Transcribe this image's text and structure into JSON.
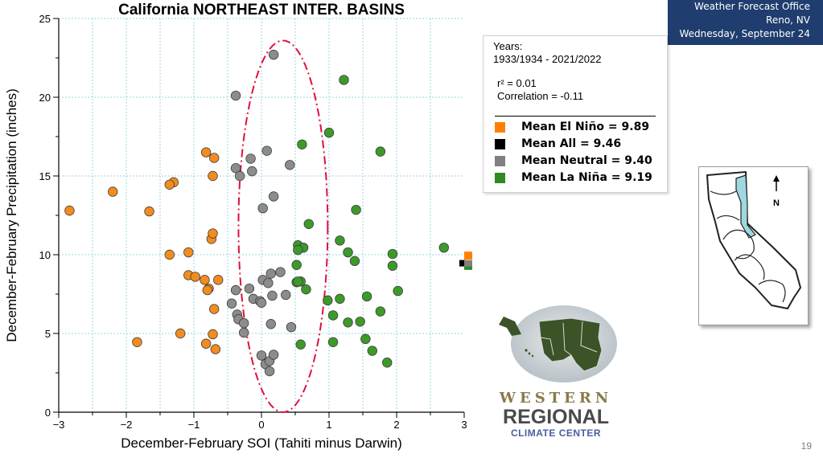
{
  "header": {
    "office": "Weather Forecast Office",
    "city": "Reno, NV",
    "date": "Wednesday, September 24"
  },
  "legend": {
    "years_label": "Years:",
    "years_range": "1933/1934 - 2021/2022",
    "r2": "r² = 0.01",
    "correlation": "Correlation = -0.11",
    "entries": [
      {
        "label": "Mean El Niño = 9.89",
        "color": "#ff8000"
      },
      {
        "label": "Mean All = 9.46",
        "color": "#000000"
      },
      {
        "label": "Mean Neutral = 9.40",
        "color": "#808080"
      },
      {
        "label": "Mean La Niña = 9.19",
        "color": "#2e8b22"
      }
    ]
  },
  "logo": {
    "line1": "WESTERN",
    "line2": "REGIONAL",
    "line3": "CLIMATE CENTER"
  },
  "map": {
    "north_label": "N"
  },
  "page_number": "19",
  "chart_data": {
    "type": "scatter",
    "title": "California NORTHEAST INTER. BASINS",
    "xlabel": "December-February SOI (Tahiti minus Darwin)",
    "ylabel": "December-February Precipitation (inches)",
    "xlim": [
      -3,
      3
    ],
    "ylim": [
      0,
      25
    ],
    "xticks": [
      -3,
      -2,
      -1,
      0,
      1,
      2,
      3
    ],
    "xtick_labels": [
      "−3",
      "−2",
      "−1",
      "0",
      "1",
      "2",
      "3"
    ],
    "yticks": [
      0,
      5,
      10,
      15,
      20,
      25
    ],
    "ytick_labels": [
      "0",
      "5",
      "10",
      "15",
      "20",
      "25"
    ],
    "grid": true,
    "colors": {
      "el_nino": "#f28c1e",
      "neutral": "#8c8c8c",
      "la_nina": "#3d9a2a",
      "ellipse": "#e0103a",
      "grid": "#9ad4e6"
    },
    "ellipse": {
      "center": [
        0.32,
        11.8
      ],
      "x_radius": 0.66,
      "y_radius": 11.8
    },
    "series": [
      {
        "name": "El Niño",
        "points": [
          [
            -2.84,
            12.8
          ],
          [
            -2.2,
            14.0
          ],
          [
            -1.66,
            12.75
          ],
          [
            -1.84,
            4.45
          ],
          [
            -1.3,
            14.6
          ],
          [
            -1.36,
            14.45
          ],
          [
            -1.36,
            10.0
          ],
          [
            -1.08,
            10.15
          ],
          [
            -1.2,
            5.0
          ],
          [
            -1.08,
            8.7
          ],
          [
            -0.98,
            8.6
          ],
          [
            -0.84,
            8.4
          ],
          [
            -0.82,
            16.5
          ],
          [
            -0.78,
            7.85
          ],
          [
            -0.8,
            7.75
          ],
          [
            -0.72,
            15.0
          ],
          [
            -0.7,
            16.15
          ],
          [
            -0.74,
            11.0
          ],
          [
            -0.72,
            11.35
          ],
          [
            -0.64,
            8.4
          ],
          [
            -0.7,
            6.55
          ],
          [
            -0.72,
            4.95
          ],
          [
            -0.82,
            4.35
          ],
          [
            -0.68,
            4.0
          ]
        ]
      },
      {
        "name": "Neutral",
        "points": [
          [
            -0.38,
            20.1
          ],
          [
            -0.38,
            15.5
          ],
          [
            -0.32,
            15.0
          ],
          [
            -0.16,
            16.1
          ],
          [
            -0.14,
            15.3
          ],
          [
            0.08,
            16.6
          ],
          [
            0.42,
            15.7
          ],
          [
            0.18,
            13.7
          ],
          [
            0.02,
            12.95
          ],
          [
            0.18,
            22.7
          ],
          [
            0.14,
            8.8
          ],
          [
            0.28,
            8.9
          ],
          [
            0.02,
            8.4
          ],
          [
            -0.38,
            7.75
          ],
          [
            -0.18,
            7.85
          ],
          [
            -0.12,
            7.2
          ],
          [
            -0.02,
            7.05
          ],
          [
            0.0,
            6.95
          ],
          [
            0.1,
            8.2
          ],
          [
            0.16,
            7.4
          ],
          [
            0.36,
            7.45
          ],
          [
            -0.44,
            6.9
          ],
          [
            -0.36,
            6.2
          ],
          [
            -0.34,
            5.9
          ],
          [
            -0.26,
            5.65
          ],
          [
            -0.26,
            5.05
          ],
          [
            0.14,
            5.6
          ],
          [
            0.44,
            5.4
          ],
          [
            0.0,
            3.6
          ],
          [
            0.06,
            3.05
          ],
          [
            0.12,
            3.25
          ],
          [
            0.18,
            3.65
          ],
          [
            0.12,
            2.6
          ]
        ]
      },
      {
        "name": "La Niña",
        "points": [
          [
            1.22,
            21.1
          ],
          [
            0.6,
            17.0
          ],
          [
            1.0,
            17.75
          ],
          [
            1.76,
            16.55
          ],
          [
            1.4,
            12.85
          ],
          [
            0.7,
            11.95
          ],
          [
            0.54,
            10.6
          ],
          [
            0.62,
            10.45
          ],
          [
            0.54,
            10.3
          ],
          [
            1.16,
            10.9
          ],
          [
            1.28,
            10.15
          ],
          [
            1.94,
            10.05
          ],
          [
            1.94,
            9.3
          ],
          [
            1.38,
            9.6
          ],
          [
            2.7,
            10.45
          ],
          [
            0.52,
            9.35
          ],
          [
            0.52,
            8.25
          ],
          [
            0.58,
            8.3
          ],
          [
            0.54,
            8.3
          ],
          [
            0.66,
            7.8
          ],
          [
            0.98,
            7.1
          ],
          [
            1.16,
            7.2
          ],
          [
            1.56,
            7.35
          ],
          [
            2.02,
            7.7
          ],
          [
            1.76,
            6.4
          ],
          [
            1.06,
            6.15
          ],
          [
            1.28,
            5.7
          ],
          [
            1.46,
            5.75
          ],
          [
            1.54,
            4.65
          ],
          [
            1.64,
            3.9
          ],
          [
            1.86,
            3.15
          ],
          [
            0.58,
            4.3
          ],
          [
            1.06,
            4.45
          ]
        ]
      }
    ],
    "mean_markers": [
      {
        "name": "Mean El Niño",
        "value": 9.89,
        "color": "#ff8000"
      },
      {
        "name": "Mean All",
        "value": 9.46,
        "color": "#000000"
      },
      {
        "name": "Mean Neutral",
        "value": 9.4,
        "color": "#808080"
      },
      {
        "name": "Mean La Niña",
        "value": 9.19,
        "color": "#2e8b22"
      }
    ]
  }
}
